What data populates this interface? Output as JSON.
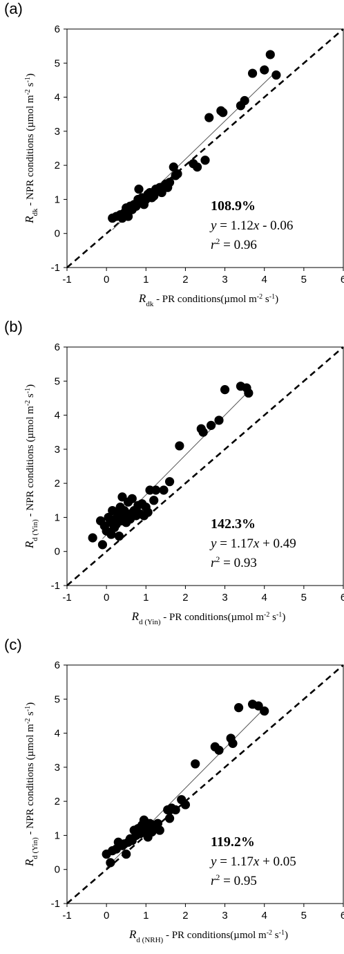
{
  "chart_data": [
    {
      "type": "scatter",
      "panel_label": "(a)",
      "xlim": [
        -1,
        6
      ],
      "ylim": [
        -1,
        6
      ],
      "xticks": [
        "-1",
        "0",
        "1",
        "2",
        "3",
        "4",
        "5",
        "6"
      ],
      "yticks": [
        "-1",
        "0",
        "1",
        "2",
        "3",
        "4",
        "5",
        "6"
      ],
      "xlabel": {
        "sym": "R",
        "sub": "dk",
        "pre": "",
        "text": " - PR conditions(µmol m",
        "sup1": "-2",
        "mid": " s",
        "sup2": "-1",
        "end": ")"
      },
      "ylabel": {
        "sym": "R",
        "sub": "dk",
        "pre": "",
        "text": " - NPR conditions (µmol m",
        "sup1": "-2",
        "mid": " s",
        "sup2": "-1",
        "end": ")"
      },
      "annotation": {
        "percent": "108.9%",
        "eq_pre": "",
        "eq_y": "y",
        "eq_mid": " = 1.12",
        "eq_x": "x",
        "eq_end": " - 0.06",
        "r_sym": "r",
        "r_sup": "2",
        "r_end": " = 0.96"
      },
      "fit_line": {
        "slope": 1.12,
        "intercept": -0.06,
        "x_range": [
          0.15,
          4.2
        ]
      },
      "identity_line": true,
      "points": [
        [
          0.15,
          0.45
        ],
        [
          0.25,
          0.5
        ],
        [
          0.35,
          0.55
        ],
        [
          0.4,
          0.45
        ],
        [
          0.45,
          0.6
        ],
        [
          0.5,
          0.75
        ],
        [
          0.55,
          0.5
        ],
        [
          0.6,
          0.8
        ],
        [
          0.65,
          0.7
        ],
        [
          0.7,
          0.85
        ],
        [
          0.75,
          0.8
        ],
        [
          0.8,
          1.0
        ],
        [
          0.82,
          1.3
        ],
        [
          0.85,
          0.9
        ],
        [
          0.9,
          1.05
        ],
        [
          0.95,
          0.85
        ],
        [
          1.0,
          1.0
        ],
        [
          1.05,
          1.15
        ],
        [
          1.1,
          1.2
        ],
        [
          1.15,
          1.05
        ],
        [
          1.2,
          1.1
        ],
        [
          1.25,
          1.3
        ],
        [
          1.3,
          1.25
        ],
        [
          1.35,
          1.35
        ],
        [
          1.4,
          1.2
        ],
        [
          1.5,
          1.45
        ],
        [
          1.55,
          1.35
        ],
        [
          1.6,
          1.5
        ],
        [
          1.7,
          1.95
        ],
        [
          1.75,
          1.7
        ],
        [
          1.8,
          1.75
        ],
        [
          2.2,
          2.05
        ],
        [
          2.3,
          1.95
        ],
        [
          2.5,
          2.15
        ],
        [
          2.6,
          3.4
        ],
        [
          2.9,
          3.6
        ],
        [
          2.95,
          3.55
        ],
        [
          3.4,
          3.75
        ],
        [
          3.5,
          3.9
        ],
        [
          3.7,
          4.7
        ],
        [
          4.0,
          4.8
        ],
        [
          4.15,
          5.25
        ],
        [
          4.3,
          4.65
        ]
      ]
    },
    {
      "type": "scatter",
      "panel_label": "(b)",
      "xlim": [
        -1,
        6
      ],
      "ylim": [
        -1,
        6
      ],
      "xticks": [
        "-1",
        "0",
        "1",
        "2",
        "3",
        "4",
        "5",
        "6"
      ],
      "yticks": [
        "-1",
        "0",
        "1",
        "2",
        "3",
        "4",
        "5",
        "6"
      ],
      "xlabel": {
        "sym": "R",
        "sub": "d (Yin)",
        "pre": "",
        "text": " - PR conditions(µmol m",
        "sup1": "-2",
        "mid": " s",
        "sup2": "-1",
        "end": ")"
      },
      "ylabel": {
        "sym": "R",
        "sub": "d (Yin)",
        "pre": "",
        "text": " - NPR conditions (µmol m",
        "sup1": "-2",
        "mid": " s",
        "sup2": "-1",
        "end": ")"
      },
      "annotation": {
        "percent": "142.3%",
        "eq_y": "y",
        "eq_mid": " = 1.17",
        "eq_x": "x",
        "eq_end": " + 0.49",
        "r_sym": "r",
        "r_sup": "2",
        "r_end": " = 0.93"
      },
      "fit_line": {
        "slope": 1.17,
        "intercept": 0.49,
        "x_range": [
          -0.1,
          3.55
        ]
      },
      "identity_line": true,
      "points": [
        [
          -0.35,
          0.4
        ],
        [
          -0.15,
          0.9
        ],
        [
          -0.1,
          0.2
        ],
        [
          -0.05,
          0.75
        ],
        [
          0.0,
          0.6
        ],
        [
          0.05,
          1.0
        ],
        [
          0.1,
          0.85
        ],
        [
          0.12,
          0.5
        ],
        [
          0.15,
          1.2
        ],
        [
          0.2,
          0.7
        ],
        [
          0.22,
          0.95
        ],
        [
          0.25,
          0.8
        ],
        [
          0.3,
          1.1
        ],
        [
          0.32,
          0.45
        ],
        [
          0.35,
          1.3
        ],
        [
          0.38,
          0.9
        ],
        [
          0.4,
          1.6
        ],
        [
          0.42,
          1.0
        ],
        [
          0.45,
          1.2
        ],
        [
          0.5,
          0.85
        ],
        [
          0.55,
          1.45
        ],
        [
          0.58,
          1.1
        ],
        [
          0.6,
          0.95
        ],
        [
          0.65,
          1.55
        ],
        [
          0.7,
          1.2
        ],
        [
          0.75,
          1.05
        ],
        [
          0.8,
          1.35
        ],
        [
          0.85,
          1.1
        ],
        [
          0.9,
          1.4
        ],
        [
          0.95,
          1.05
        ],
        [
          1.0,
          1.3
        ],
        [
          1.05,
          1.15
        ],
        [
          1.1,
          1.8
        ],
        [
          1.2,
          1.5
        ],
        [
          1.25,
          1.8
        ],
        [
          1.45,
          1.8
        ],
        [
          1.6,
          2.05
        ],
        [
          1.85,
          3.1
        ],
        [
          2.4,
          3.6
        ],
        [
          2.45,
          3.5
        ],
        [
          2.65,
          3.7
        ],
        [
          2.85,
          3.85
        ],
        [
          3.0,
          4.75
        ],
        [
          3.4,
          4.85
        ],
        [
          3.55,
          4.8
        ],
        [
          3.6,
          4.65
        ]
      ]
    },
    {
      "type": "scatter",
      "panel_label": "(c)",
      "xlim": [
        -1,
        6
      ],
      "ylim": [
        -1,
        6
      ],
      "xticks": [
        "-1",
        "0",
        "1",
        "2",
        "3",
        "4",
        "5",
        "6"
      ],
      "yticks": [
        "-1",
        "0",
        "1",
        "2",
        "3",
        "4",
        "5",
        "6"
      ],
      "xlabel": {
        "sym": "R",
        "sub": "d (NRH)",
        "pre": "",
        "text": " - PR conditions(µmol m",
        "sup1": "-2",
        "mid": " s",
        "sup2": "-1",
        "end": ")"
      },
      "ylabel": {
        "sym": "R",
        "sub": "d (Yin)",
        "pre": "",
        "text": " - NPR conditions (µmol m",
        "sup1": "-2",
        "mid": " s",
        "sup2": "-1",
        "end": ")"
      },
      "annotation": {
        "percent": "119.2%",
        "eq_y": "y",
        "eq_mid": " = 1.17",
        "eq_x": "x",
        "eq_end": " + 0.05",
        "r_sym": "r",
        "r_sup": "2",
        "r_end": " = 0.95"
      },
      "fit_line": {
        "slope": 1.17,
        "intercept": 0.05,
        "x_range": [
          0.0,
          3.95
        ]
      },
      "identity_line": true,
      "points": [
        [
          0.0,
          0.45
        ],
        [
          0.1,
          0.2
        ],
        [
          0.15,
          0.55
        ],
        [
          0.25,
          0.6
        ],
        [
          0.3,
          0.8
        ],
        [
          0.4,
          0.7
        ],
        [
          0.45,
          0.75
        ],
        [
          0.5,
          0.45
        ],
        [
          0.55,
          0.8
        ],
        [
          0.6,
          0.9
        ],
        [
          0.65,
          0.85
        ],
        [
          0.7,
          1.15
        ],
        [
          0.75,
          1.0
        ],
        [
          0.8,
          1.2
        ],
        [
          0.85,
          1.05
        ],
        [
          0.9,
          1.3
        ],
        [
          0.92,
          1.1
        ],
        [
          0.95,
          1.45
        ],
        [
          1.0,
          1.2
        ],
        [
          1.05,
          0.95
        ],
        [
          1.1,
          1.35
        ],
        [
          1.15,
          1.1
        ],
        [
          1.2,
          1.3
        ],
        [
          1.25,
          1.2
        ],
        [
          1.3,
          1.35
        ],
        [
          1.35,
          1.15
        ],
        [
          1.55,
          1.75
        ],
        [
          1.6,
          1.5
        ],
        [
          1.65,
          1.8
        ],
        [
          1.75,
          1.75
        ],
        [
          1.9,
          2.05
        ],
        [
          2.0,
          1.9
        ],
        [
          2.25,
          3.1
        ],
        [
          2.75,
          3.6
        ],
        [
          2.85,
          3.5
        ],
        [
          3.15,
          3.85
        ],
        [
          3.2,
          3.7
        ],
        [
          3.35,
          4.75
        ],
        [
          3.7,
          4.85
        ],
        [
          3.85,
          4.8
        ],
        [
          4.0,
          4.65
        ]
      ]
    }
  ]
}
